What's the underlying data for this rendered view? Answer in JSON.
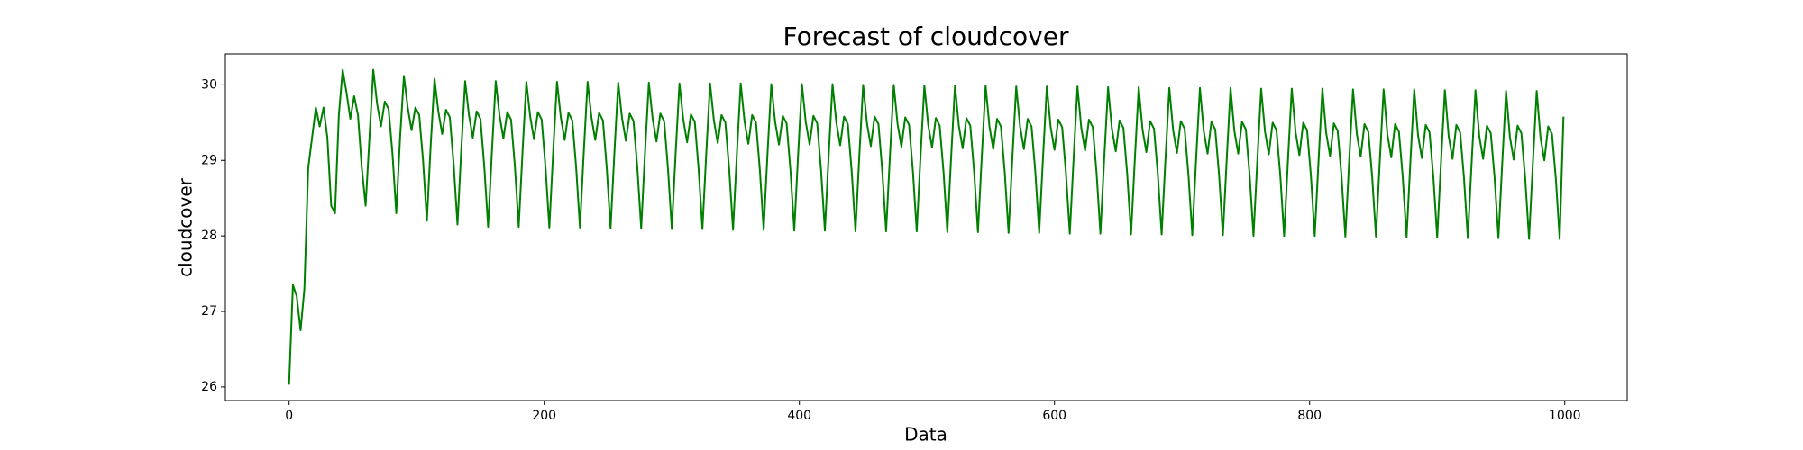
{
  "chart_data": {
    "type": "line",
    "title": "Forecast of cloudcover",
    "x_label": "Data",
    "y_label": "cloudcover",
    "xlim": [
      -49.95,
      1048.95
    ],
    "xticks": [
      0,
      200,
      400,
      600,
      800,
      1000
    ],
    "ylim": [
      25.82,
      30.41
    ],
    "yticks": [
      26,
      27,
      28,
      29,
      30
    ],
    "x": [
      0,
      3,
      6,
      9,
      12,
      15,
      18,
      21,
      24,
      27,
      30,
      33,
      36,
      39,
      42,
      45,
      48,
      51,
      54,
      57,
      60,
      63,
      66,
      69,
      72,
      75,
      78,
      81,
      84,
      87,
      90,
      93,
      96,
      99,
      102,
      105,
      108,
      111,
      114,
      117,
      120,
      123,
      126,
      129,
      132,
      135,
      138,
      141,
      144,
      147,
      150,
      153,
      156,
      159,
      162,
      165,
      168,
      171,
      174,
      177,
      180,
      183,
      186,
      189,
      192,
      195,
      198,
      201,
      204,
      207,
      210,
      213,
      216,
      219,
      222,
      225,
      228,
      231,
      234,
      237,
      240,
      243,
      246,
      249,
      252,
      255,
      258,
      261,
      264,
      267,
      270,
      273,
      276,
      279,
      282,
      285,
      288,
      291,
      294,
      297,
      300,
      303,
      306,
      309,
      312,
      315,
      318,
      321,
      324,
      327,
      330,
      333,
      336,
      339,
      342,
      345,
      348,
      351,
      354,
      357,
      360,
      363,
      366,
      369,
      372,
      375,
      378,
      381,
      384,
      387,
      390,
      393,
      396,
      399,
      402,
      405,
      408,
      411,
      414,
      417,
      420,
      423,
      426,
      429,
      432,
      435,
      438,
      441,
      444,
      447,
      450,
      453,
      456,
      459,
      462,
      465,
      468,
      471,
      474,
      477,
      480,
      483,
      486,
      489,
      492,
      495,
      498,
      501,
      504,
      507,
      510,
      513,
      516,
      519,
      522,
      525,
      528,
      531,
      534,
      537,
      540,
      543,
      546,
      549,
      552,
      555,
      558,
      561,
      564,
      567,
      570,
      573,
      576,
      579,
      582,
      585,
      588,
      591,
      594,
      597,
      600,
      603,
      606,
      609,
      612,
      615,
      618,
      621,
      624,
      627,
      630,
      633,
      636,
      639,
      642,
      645,
      648,
      651,
      654,
      657,
      660,
      663,
      666,
      669,
      672,
      675,
      678,
      681,
      684,
      687,
      690,
      693,
      696,
      699,
      702,
      705,
      708,
      711,
      714,
      717,
      720,
      723,
      726,
      729,
      732,
      735,
      738,
      741,
      744,
      747,
      750,
      753,
      756,
      759,
      762,
      765,
      768,
      771,
      774,
      777,
      780,
      783,
      786,
      789,
      792,
      795,
      798,
      801,
      804,
      807,
      810,
      813,
      816,
      819,
      822,
      825,
      828,
      831,
      834,
      837,
      840,
      843,
      846,
      849,
      852,
      855,
      858,
      861,
      864,
      867,
      870,
      873,
      876,
      879,
      882,
      885,
      888,
      891,
      894,
      897,
      900,
      903,
      906,
      909,
      912,
      915,
      918,
      921,
      924,
      927,
      930,
      933,
      936,
      939,
      942,
      945,
      948,
      951,
      954,
      957,
      960,
      963,
      966,
      969,
      972,
      975,
      978,
      981,
      984,
      987,
      990,
      993,
      996,
      999
    ],
    "series": [
      {
        "color": "#008000",
        "values": [
          26.03,
          27.35,
          27.2,
          26.75,
          27.3,
          28.9,
          29.3,
          29.7,
          29.45,
          29.7,
          29.3,
          28.4,
          28.3,
          29.6,
          30.2,
          29.9,
          29.55,
          29.85,
          29.6,
          28.9,
          28.4,
          29.3,
          30.2,
          29.75,
          29.45,
          29.78,
          29.68,
          29.1,
          28.3,
          29.3,
          30.12,
          29.7,
          29.4,
          29.7,
          29.6,
          29.0,
          28.2,
          29.2,
          30.08,
          29.65,
          29.35,
          29.67,
          29.57,
          28.95,
          28.15,
          29.15,
          30.05,
          29.6,
          29.3,
          29.65,
          29.55,
          28.92,
          28.12,
          29.12,
          30.05,
          29.59,
          29.29,
          29.64,
          29.54,
          28.92,
          28.12,
          29.12,
          30.04,
          29.58,
          29.28,
          29.64,
          29.54,
          28.91,
          28.11,
          29.11,
          30.04,
          29.57,
          29.27,
          29.63,
          29.53,
          28.91,
          28.11,
          29.11,
          30.04,
          29.57,
          29.27,
          29.63,
          29.53,
          28.9,
          28.1,
          29.1,
          30.03,
          29.56,
          29.26,
          29.62,
          29.52,
          28.9,
          28.1,
          29.1,
          30.03,
          29.55,
          29.25,
          29.62,
          29.52,
          28.89,
          28.09,
          29.09,
          30.02,
          29.54,
          29.24,
          29.61,
          29.51,
          28.89,
          28.09,
          29.09,
          30.02,
          29.53,
          29.23,
          29.6,
          29.5,
          28.88,
          28.08,
          29.08,
          30.02,
          29.52,
          29.22,
          29.6,
          29.5,
          28.88,
          28.08,
          29.08,
          30.01,
          29.51,
          29.21,
          29.59,
          29.49,
          28.87,
          28.07,
          29.07,
          30.01,
          29.51,
          29.21,
          29.59,
          29.49,
          28.87,
          28.07,
          29.07,
          30.01,
          29.5,
          29.2,
          29.58,
          29.48,
          28.86,
          28.06,
          29.06,
          30.0,
          29.49,
          29.19,
          29.58,
          29.48,
          28.86,
          28.06,
          29.06,
          30.0,
          29.48,
          29.18,
          29.57,
          29.47,
          28.86,
          28.06,
          29.06,
          29.99,
          29.47,
          29.17,
          29.56,
          29.46,
          28.85,
          28.05,
          29.05,
          29.99,
          29.46,
          29.16,
          29.56,
          29.46,
          28.85,
          28.05,
          29.05,
          29.99,
          29.45,
          29.15,
          29.55,
          29.45,
          28.84,
          28.04,
          29.04,
          29.98,
          29.45,
          29.15,
          29.55,
          29.45,
          28.84,
          28.04,
          29.04,
          29.98,
          29.44,
          29.14,
          29.54,
          29.44,
          28.83,
          28.03,
          29.03,
          29.98,
          29.43,
          29.13,
          29.54,
          29.44,
          28.83,
          28.03,
          29.03,
          29.97,
          29.42,
          29.12,
          29.53,
          29.43,
          28.82,
          28.02,
          29.02,
          29.97,
          29.41,
          29.11,
          29.52,
          29.42,
          28.82,
          28.02,
          29.02,
          29.96,
          29.4,
          29.1,
          29.52,
          29.42,
          28.81,
          28.01,
          29.01,
          29.96,
          29.39,
          29.09,
          29.51,
          29.41,
          28.81,
          28.01,
          29.01,
          29.96,
          29.39,
          29.09,
          29.51,
          29.41,
          28.8,
          28.0,
          29.0,
          29.95,
          29.38,
          29.08,
          29.5,
          29.4,
          28.8,
          28.0,
          29.0,
          29.95,
          29.37,
          29.07,
          29.5,
          29.4,
          28.8,
          28.0,
          29.0,
          29.95,
          29.36,
          29.06,
          29.49,
          29.39,
          28.79,
          27.99,
          28.99,
          29.94,
          29.35,
          29.05,
          29.48,
          29.38,
          28.79,
          27.99,
          28.99,
          29.94,
          29.34,
          29.04,
          29.48,
          29.38,
          28.78,
          27.98,
          28.98,
          29.94,
          29.33,
          29.03,
          29.47,
          29.37,
          28.78,
          27.98,
          28.98,
          29.93,
          29.32,
          29.02,
          29.47,
          29.37,
          28.77,
          27.97,
          28.97,
          29.93,
          29.32,
          29.02,
          29.46,
          29.36,
          28.77,
          27.97,
          28.97,
          29.92,
          29.31,
          29.01,
          29.46,
          29.36,
          28.76,
          27.96,
          28.96,
          29.92,
          29.3,
          29.0,
          29.45,
          29.35,
          28.76,
          27.96,
          29.58
        ]
      }
    ]
  }
}
